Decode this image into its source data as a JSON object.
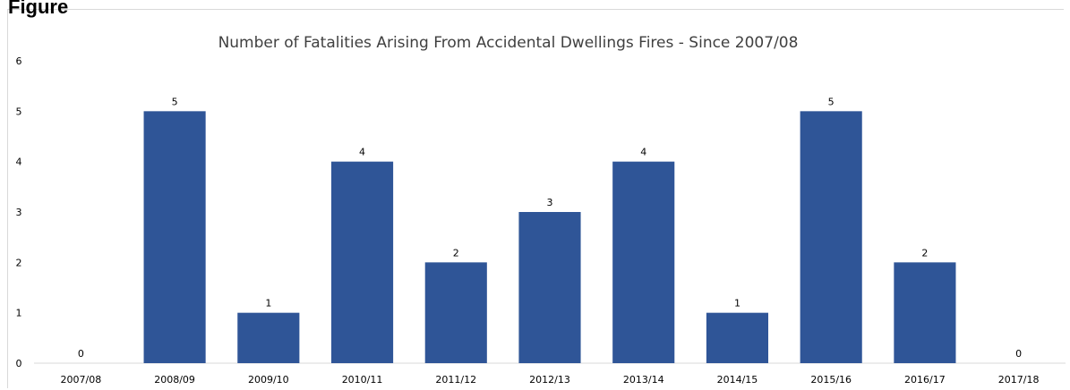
{
  "header": {
    "label": "Figure"
  },
  "chart_data": {
    "type": "bar",
    "title": "Number of Fatalities Arising From Accidental Dwellings Fires - Since 2007/08",
    "xlabel": "",
    "ylabel": "",
    "categories": [
      "2007/08",
      "2008/09",
      "2009/10",
      "2010/11",
      "2011/12",
      "2012/13",
      "2013/14",
      "2014/15",
      "2015/16",
      "2016/17",
      "2017/18"
    ],
    "values": [
      0,
      5,
      1,
      4,
      2,
      3,
      4,
      1,
      5,
      2,
      0
    ],
    "ylim": [
      0,
      6
    ],
    "yticks": [
      0,
      1,
      2,
      3,
      4,
      5,
      6
    ],
    "bar_color": "#2F5597",
    "grid": false,
    "legend": "none",
    "data_labels": true
  }
}
